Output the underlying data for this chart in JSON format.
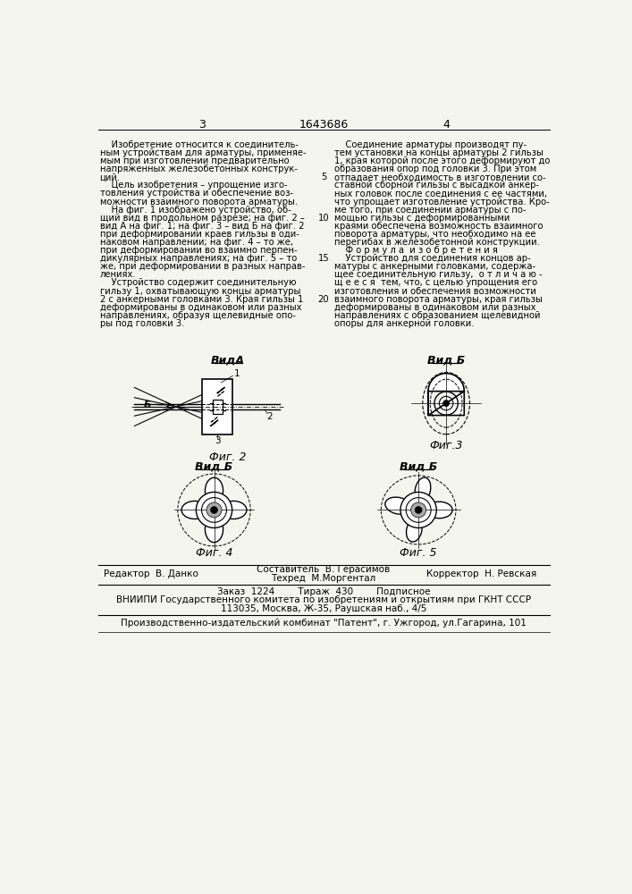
{
  "page_number_left": "3",
  "patent_number": "1643686",
  "page_number_right": "4",
  "background_color": "#f5f5f0",
  "text_color": "#1a1a1a",
  "font_size_body": 7.2,
  "left_column_text": [
    "    Изобретение относится к соединитель-",
    "ным устройствам для арматуры, применяе-",
    "мым при изготовлении предварительно",
    "напряженных железобетонных конструк-",
    "ций.",
    "    Цель изобретения – упрощение изго-",
    "товления устройства и обеспечение воз-",
    "можности взаимного поворота арматуры.",
    "    На фиг. 1 изображено устройство, об-",
    "щий вид в продольном разрезе; на фиг. 2 –",
    "вид А на фиг. 1; на фиг. 3 – вид Б на фиг. 2",
    "при деформировании краев гильзы в оди-",
    "наковом направлении; на фиг. 4 – то же,",
    "при деформировании во взаимно перпен-",
    "дикулярных направлениях; на фиг. 5 – то",
    "же, при деформировании в разных направ-",
    "лениях.",
    "    Устройство содержит соединительную",
    "гильзу 1, охватывающую концы арматуры",
    "2 с анкерными головками 3. Края гильзы 1",
    "деформированы в одинаковом или разных",
    "направлениях, образуя щелевидные опо-",
    "ры под головки 3."
  ],
  "right_column_text": [
    "    Соединение арматуры производят пу-",
    "тем установки на концы арматуры 2 гильзы",
    "1, края которой после этого деформируют до",
    "образования опор под головки 3. При этом",
    "отпадает необходимость в изготовлении со-",
    "ставной сборной гильзы с высадкой анкер-",
    "ных головок после соединения с ее частями,",
    "что упрощает изготовление устройства. Кро-",
    "ме того, при соединении арматуры с по-",
    "мощью гильзы с деформированными",
    "краями обеспечена возможность взаимного",
    "поворота арматуры, что необходимо на ее",
    "перегибах в железобетонной конструкции.",
    "    Ф о р м у л а  и з о б р е т е н и я",
    "    Устройство для соединения концов ар-",
    "матуры с анкерными головками, содержа-",
    "щее соединительную гильзу,  о т л и ч а ю -",
    "щ е е с я  тем, что, с целью упрощения его",
    "изготовления и обеспечения возможности",
    "взаимного поворота арматуры, края гильзы",
    "деформированы в одинаковом или разных",
    "направлениях с образованием щелевидной",
    "опоры для анкерной головки."
  ],
  "line_number_rows": [
    [
      4,
      5
    ],
    [
      9,
      10
    ],
    [
      14,
      15
    ],
    [
      19,
      20
    ]
  ],
  "label_vida": "ВидА",
  "label_vidb_fig3": "Вид Б",
  "label_vidb_fig4": "Вид Б",
  "label_vidb_fig5": "Вид Б",
  "label_fig2": "Фиг. 2",
  "label_fig3": "Фиг.3",
  "label_fig4": "Фиг. 4",
  "label_fig5": "Фиг. 5",
  "editor_text": "Редактор  В. Данко",
  "bottom_text_center1": "Составитель  В. Герасимов",
  "bottom_text_center2": "Техред  М.Моргентал",
  "bottom_text_right": "Корректор  Н. Ревская",
  "order_text": "Заказ  1224        Тираж  430        Подписное",
  "vniiipi_text": "ВНИИПИ Государственного комитета по изобретениям и открытиям при ГКНТ СССР",
  "address_text": "113035, Москва, Ж-35, Раушская наб., 4/5",
  "publisher_text": "Производственно-издательский комбинат \"Патент\", г. Ужгород, ул.Гагарина, 101"
}
